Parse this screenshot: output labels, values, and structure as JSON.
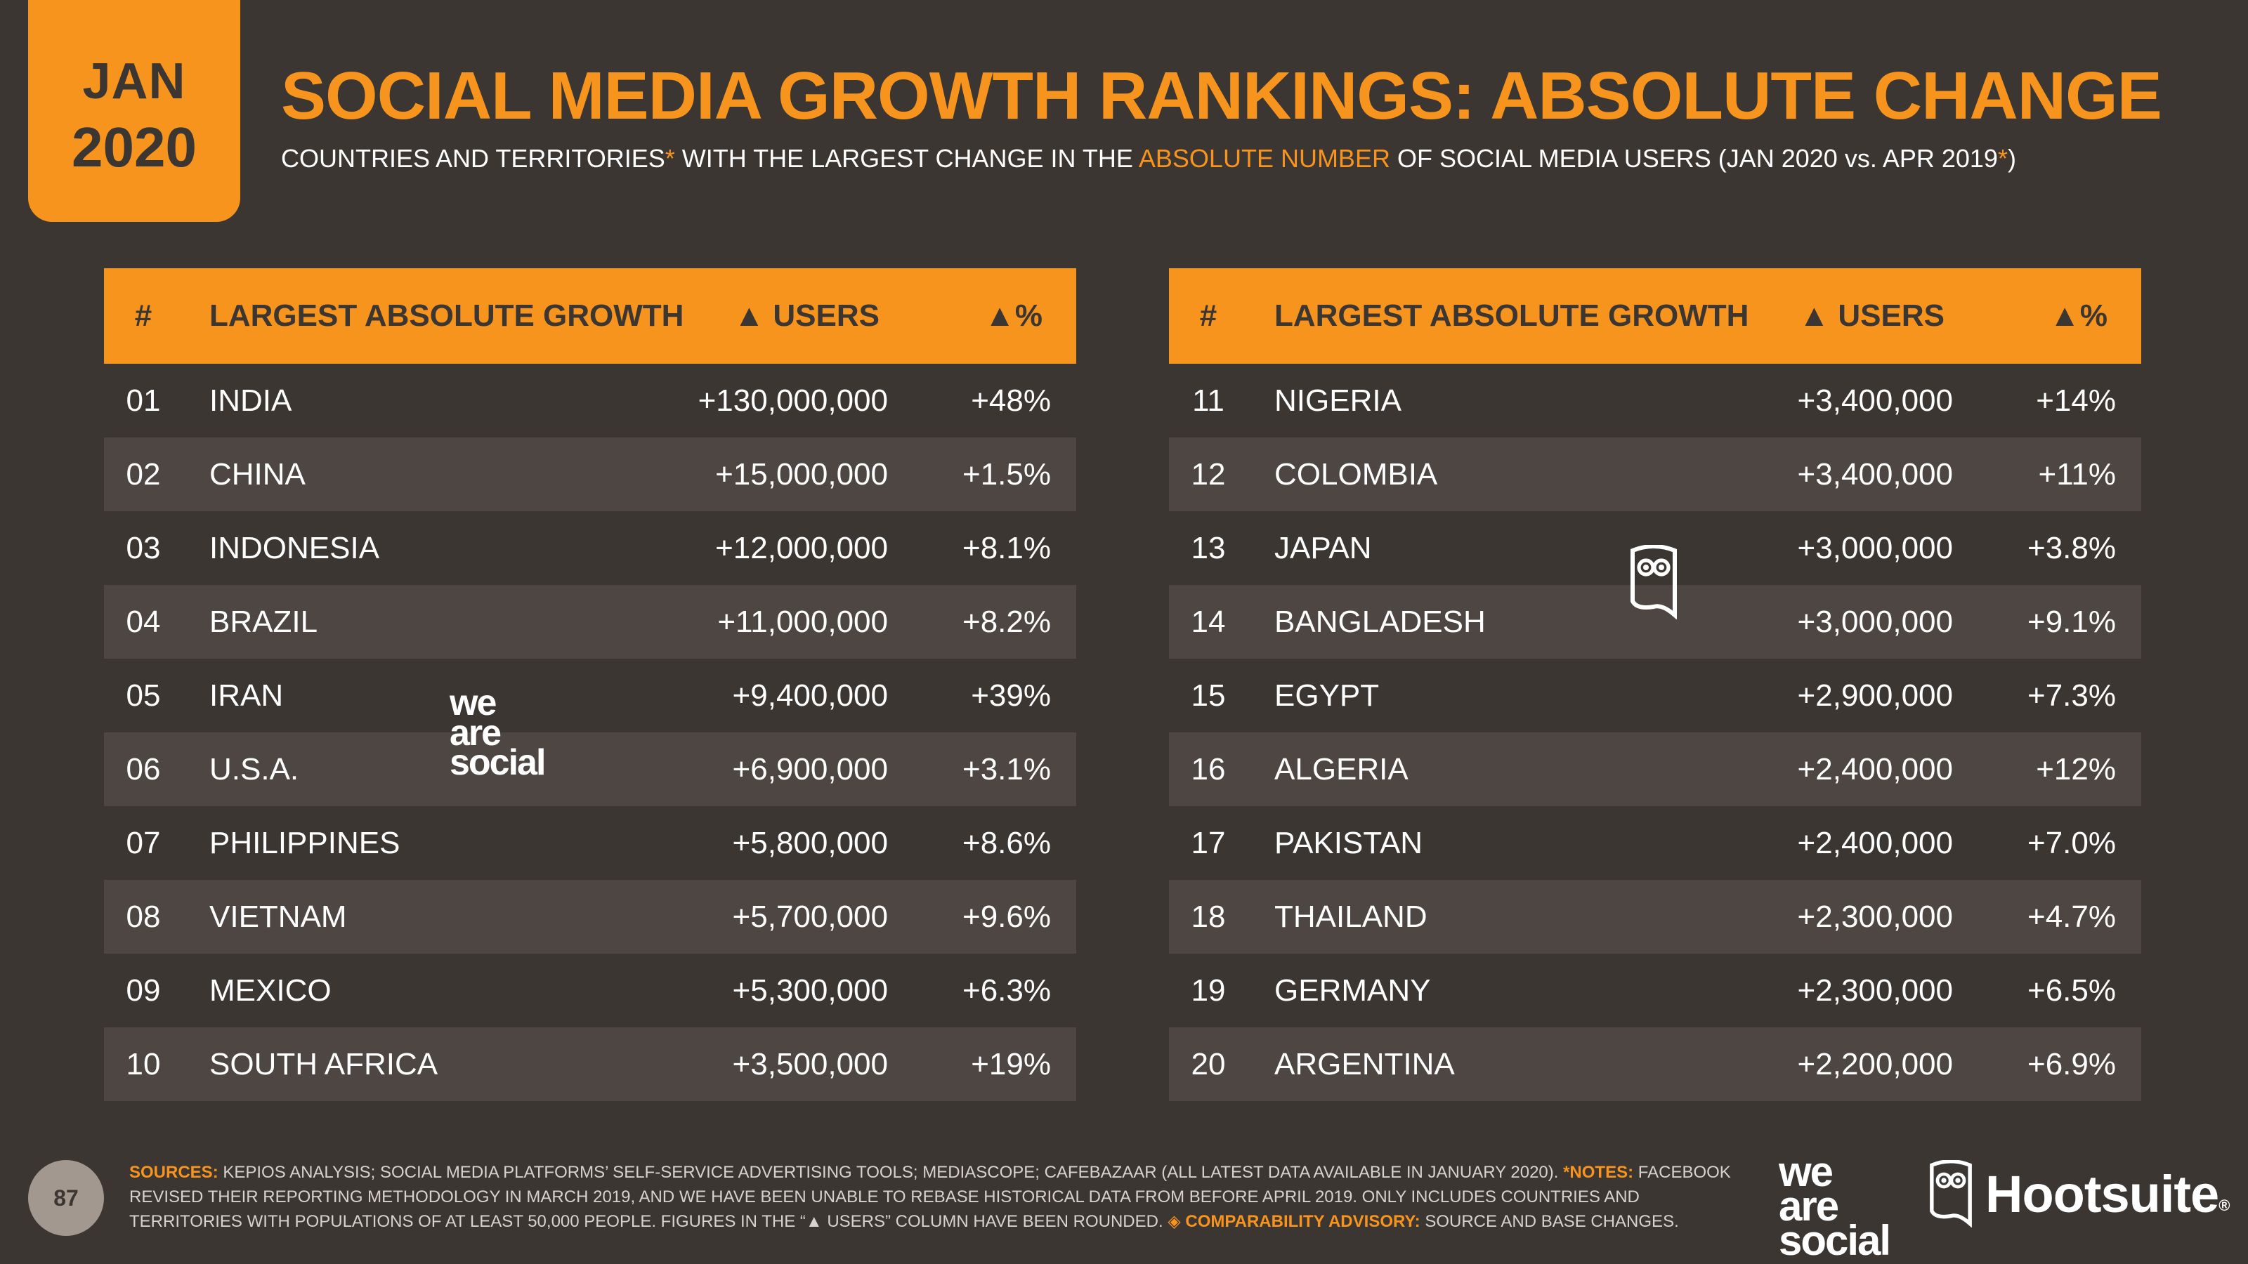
{
  "badge": {
    "month": "JAN",
    "year": "2020"
  },
  "title": "SOCIAL MEDIA GROWTH RANKINGS: ABSOLUTE CHANGE",
  "subtitle": {
    "part1": "COUNTRIES AND TERRITORIES",
    "asterisk": "*",
    "part2": " WITH THE LARGEST CHANGE IN THE ",
    "highlight": "ABSOLUTE NUMBER",
    "part3": " OF SOCIAL MEDIA USERS (JAN 2020 vs. APR 2019",
    "asterisk2": "*",
    "part4": ")"
  },
  "table_headers": {
    "num": "#",
    "name": "LARGEST ABSOLUTE GROWTH",
    "users": "▲ USERS",
    "pct": "▲%"
  },
  "left_rows": [
    {
      "rank": "01",
      "country": "INDIA",
      "users": "+130,000,000",
      "pct": "+48%"
    },
    {
      "rank": "02",
      "country": "CHINA",
      "users": "+15,000,000",
      "pct": "+1.5%"
    },
    {
      "rank": "03",
      "country": "INDONESIA",
      "users": "+12,000,000",
      "pct": "+8.1%"
    },
    {
      "rank": "04",
      "country": "BRAZIL",
      "users": "+11,000,000",
      "pct": "+8.2%"
    },
    {
      "rank": "05",
      "country": "IRAN",
      "users": "+9,400,000",
      "pct": "+39%"
    },
    {
      "rank": "06",
      "country": "U.S.A.",
      "users": "+6,900,000",
      "pct": "+3.1%"
    },
    {
      "rank": "07",
      "country": "PHILIPPINES",
      "users": "+5,800,000",
      "pct": "+8.6%"
    },
    {
      "rank": "08",
      "country": "VIETNAM",
      "users": "+5,700,000",
      "pct": "+9.6%"
    },
    {
      "rank": "09",
      "country": "MEXICO",
      "users": "+5,300,000",
      "pct": "+6.3%"
    },
    {
      "rank": "10",
      "country": "SOUTH AFRICA",
      "users": "+3,500,000",
      "pct": "+19%"
    }
  ],
  "right_rows": [
    {
      "rank": "11",
      "country": "NIGERIA",
      "users": "+3,400,000",
      "pct": "+14%"
    },
    {
      "rank": "12",
      "country": "COLOMBIA",
      "users": "+3,400,000",
      "pct": "+11%"
    },
    {
      "rank": "13",
      "country": "JAPAN",
      "users": "+3,000,000",
      "pct": "+3.8%"
    },
    {
      "rank": "14",
      "country": "BANGLADESH",
      "users": "+3,000,000",
      "pct": "+9.1%"
    },
    {
      "rank": "15",
      "country": "EGYPT",
      "users": "+2,900,000",
      "pct": "+7.3%"
    },
    {
      "rank": "16",
      "country": "ALGERIA",
      "users": "+2,400,000",
      "pct": "+12%"
    },
    {
      "rank": "17",
      "country": "PAKISTAN",
      "users": "+2,400,000",
      "pct": "+7.0%"
    },
    {
      "rank": "18",
      "country": "THAILAND",
      "users": "+2,300,000",
      "pct": "+4.7%"
    },
    {
      "rank": "19",
      "country": "GERMANY",
      "users": "+2,300,000",
      "pct": "+6.5%"
    },
    {
      "rank": "20",
      "country": "ARGENTINA",
      "users": "+2,200,000",
      "pct": "+6.9%"
    }
  ],
  "page_number": "87",
  "footer": {
    "sources_label": "SOURCES:",
    "sources_text": " KEPIOS ANALYSIS; SOCIAL MEDIA PLATFORMS’ SELF-SERVICE ADVERTISING TOOLS; MEDIASCOPE; CAFEBAZAAR (ALL LATEST DATA AVAILABLE IN JANUARY 2020). ",
    "notes_label": "*NOTES:",
    "notes_text": " FACEBOOK REVISED THEIR REPORTING METHODOLOGY IN MARCH 2019, AND WE HAVE BEEN UNABLE TO REBASE HISTORICAL DATA FROM BEFORE APRIL 2019. ONLY INCLUDES COUNTRIES AND TERRITORIES WITH POPULATIONS OF AT LEAST 50,000 PEOPLE. FIGURES IN THE “▲ USERS” COLUMN HAVE BEEN ROUNDED. ",
    "advisory_label": "◈ COMPARABILITY ADVISORY:",
    "advisory_text": " SOURCE AND BASE CHANGES."
  },
  "logos": {
    "was_line1": "we",
    "was_line2": "are",
    "was_line3": "social",
    "hootsuite": "Hootsuite",
    "hootsuite_mark": "®"
  },
  "colors": {
    "accent": "#f7941d",
    "background": "#3b3632",
    "row_alt": "#4d4642"
  }
}
